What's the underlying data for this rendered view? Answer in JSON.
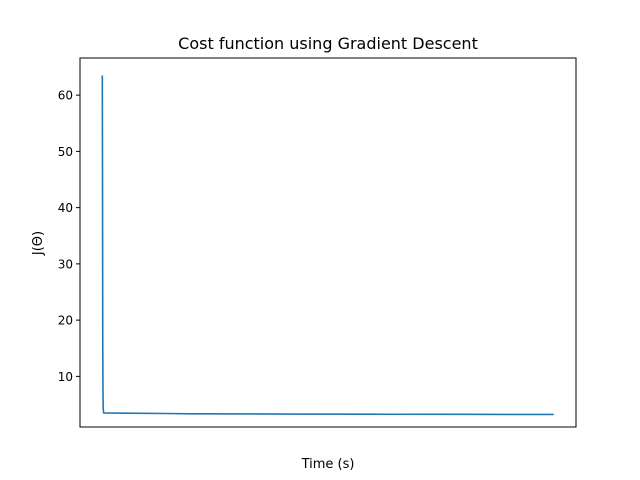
{
  "chart_data": {
    "type": "line",
    "title": "Cost function using Gradient Descent",
    "xlabel": "Time (s)",
    "ylabel": "J(Θ)",
    "xlim": [
      0,
      1
    ],
    "ylim": [
      1.0,
      66.6
    ],
    "yticks": [
      10,
      20,
      30,
      40,
      50,
      60
    ],
    "xticks": [],
    "grid": false,
    "series": [
      {
        "color": "#1f77b4",
        "x": [
          0.0,
          0.0005,
          0.001,
          0.0015,
          0.002,
          0.003,
          0.14,
          0.2,
          0.4,
          0.6,
          0.8,
          1.0
        ],
        "y": [
          63.5,
          40.0,
          15.0,
          7.0,
          4.2,
          3.5,
          3.4,
          3.35,
          3.3,
          3.27,
          3.25,
          3.23
        ]
      }
    ]
  }
}
